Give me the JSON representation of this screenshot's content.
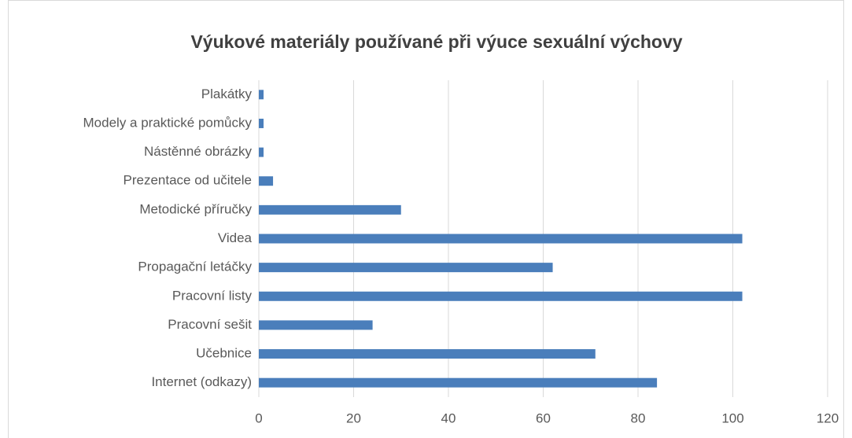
{
  "chart_data": {
    "type": "barh",
    "title": "Výukové materiály používané při  výuce sexuální výchovy",
    "categories": [
      "Internet (odkazy)",
      "Učebnice",
      "Pracovní sešit",
      "Pracovní listy",
      "Propagační letáčky",
      "Videa",
      "Metodické příručky",
      "Prezentace od učitele",
      "Nástěnné obrázky",
      "Modely a praktické pomůcky",
      "Plakátky"
    ],
    "values": [
      84,
      71,
      24,
      102,
      62,
      102,
      30,
      3,
      1,
      1,
      1
    ],
    "color": "#4a7ebb",
    "xlim": [
      0,
      120
    ],
    "xticks": [
      0,
      20,
      40,
      60,
      80,
      100,
      120
    ],
    "grid": true
  }
}
